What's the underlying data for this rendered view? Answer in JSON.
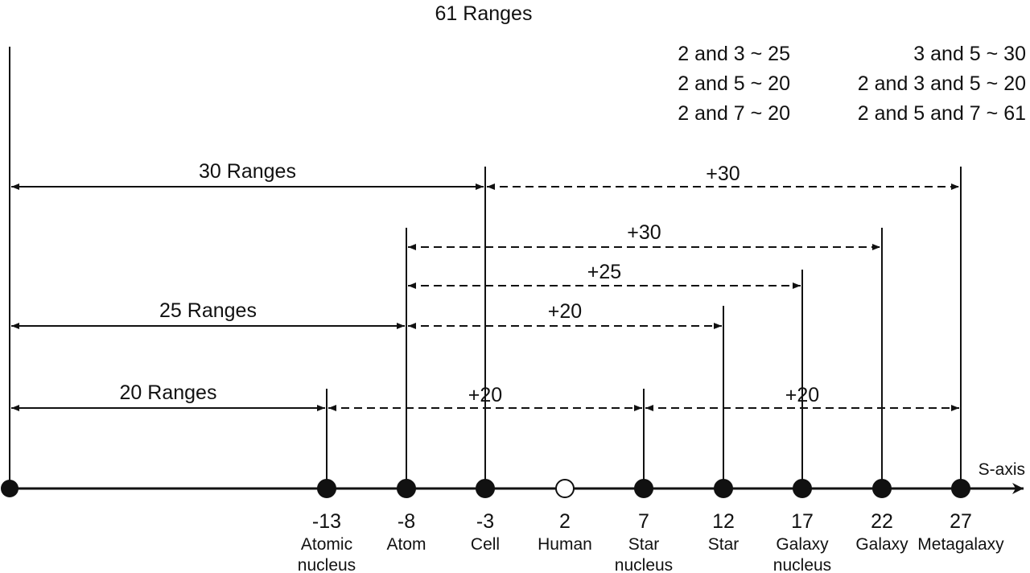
{
  "title": "61 Ranges",
  "combinations": {
    "left": [
      "2 and 3 ~ 25",
      "2 and 5 ~ 20",
      "2 and 7 ~ 20"
    ],
    "right": [
      "3 and 5 ~ 30",
      "2 and 3 and 5 ~ 20",
      "2 and 5 and 7 ~ 61"
    ]
  },
  "axis_label": "S-axis",
  "points": [
    {
      "value": "-13",
      "name": [
        "Atomic",
        "nucleus"
      ]
    },
    {
      "value": "-8",
      "name": [
        "Atom"
      ]
    },
    {
      "value": "-3",
      "name": [
        "Cell"
      ]
    },
    {
      "value": "2",
      "name": [
        "Human"
      ]
    },
    {
      "value": "7",
      "name": [
        "Star",
        "nucleus"
      ]
    },
    {
      "value": "12",
      "name": [
        "Star"
      ]
    },
    {
      "value": "17",
      "name": [
        "Galaxy",
        "nucleus"
      ]
    },
    {
      "value": "22",
      "name": [
        "Galaxy"
      ]
    },
    {
      "value": "27",
      "name": [
        "Metagalaxy"
      ]
    }
  ],
  "spans": [
    "30 Ranges",
    "+30",
    "+30",
    "+25",
    "25 Ranges",
    "+20",
    "20 Ranges",
    "+20",
    "+20"
  ]
}
